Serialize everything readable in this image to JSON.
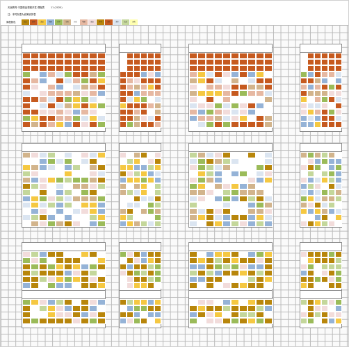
{
  "sheet": {
    "title": "天宫教育·中国精品课程开发·课程表",
    "code": "11 (2020)",
    "sub": "注：本时刻表为统筹安排表",
    "legend_label": "课程颜色",
    "legend": [
      "语文",
      "数学",
      "英语",
      "物理",
      "化学",
      "生物",
      "历史",
      "地理",
      "政治",
      "体育",
      "音乐",
      "美术",
      "信息",
      "其他"
    ]
  },
  "colors": {
    "grid_line": "#b9b9b9",
    "rust": "#c65a1f",
    "dark_gold": "#b8860b",
    "tan": "#d2b48c",
    "yellow": "#f5c842",
    "green": "#9bbb59",
    "light_green": "#c4d79b",
    "blue": "#95b3d7",
    "light_blue": "#dbe5f1",
    "pink": "#f2dcdb",
    "salmon": "#e6b8a2",
    "white": "#ffffff"
  }
}
